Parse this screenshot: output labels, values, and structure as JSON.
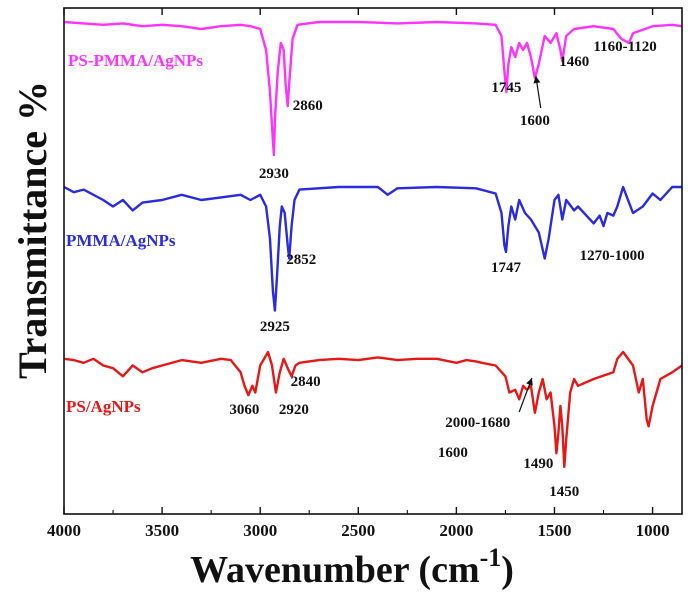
{
  "chart_data": {
    "type": "line",
    "title": "",
    "xlabel": "Wavenumber (cm",
    "xlabel_superscript": "-1",
    "xlabel_close": ")",
    "ylabel": "Transmittance  %",
    "x_axis_reversed": true,
    "xlim": [
      4000,
      850
    ],
    "xticks": [
      {
        "value": 4000,
        "label": "4000"
      },
      {
        "value": 3500,
        "label": "3500"
      },
      {
        "value": 3000,
        "label": "3000"
      },
      {
        "value": 2500,
        "label": "2500"
      },
      {
        "value": 2000,
        "label": "2000"
      },
      {
        "value": 1500,
        "label": "1500"
      },
      {
        "value": 1000,
        "label": "1000"
      }
    ],
    "y_ticks_shown": false,
    "series": [
      {
        "name": "PS-PMMA/AgNPs",
        "color": "#ff33ff",
        "points": [
          [
            4000,
            0.0
          ],
          [
            3900,
            0.01
          ],
          [
            3800,
            0.02
          ],
          [
            3700,
            0.01
          ],
          [
            3600,
            0.03
          ],
          [
            3500,
            0.02
          ],
          [
            3400,
            0.03
          ],
          [
            3300,
            0.05
          ],
          [
            3200,
            0.03
          ],
          [
            3100,
            0.02
          ],
          [
            3050,
            0.03
          ],
          [
            3000,
            0.05
          ],
          [
            2970,
            0.2
          ],
          [
            2950,
            0.5
          ],
          [
            2935,
            0.85
          ],
          [
            2930,
            0.95
          ],
          [
            2925,
            0.7
          ],
          [
            2910,
            0.35
          ],
          [
            2895,
            0.15
          ],
          [
            2880,
            0.2
          ],
          [
            2870,
            0.45
          ],
          [
            2860,
            0.6
          ],
          [
            2850,
            0.4
          ],
          [
            2835,
            0.12
          ],
          [
            2810,
            0.02
          ],
          [
            2700,
            0.0
          ],
          [
            2500,
            0.0
          ],
          [
            2300,
            0.01
          ],
          [
            2100,
            0.0
          ],
          [
            1900,
            0.01
          ],
          [
            1800,
            0.02
          ],
          [
            1770,
            0.1
          ],
          [
            1755,
            0.35
          ],
          [
            1745,
            0.5
          ],
          [
            1735,
            0.3
          ],
          [
            1720,
            0.18
          ],
          [
            1700,
            0.25
          ],
          [
            1680,
            0.15
          ],
          [
            1660,
            0.2
          ],
          [
            1640,
            0.15
          ],
          [
            1620,
            0.25
          ],
          [
            1600,
            0.4
          ],
          [
            1580,
            0.3
          ],
          [
            1550,
            0.1
          ],
          [
            1520,
            0.15
          ],
          [
            1490,
            0.08
          ],
          [
            1470,
            0.2
          ],
          [
            1460,
            0.28
          ],
          [
            1440,
            0.1
          ],
          [
            1400,
            0.05
          ],
          [
            1300,
            0.03
          ],
          [
            1200,
            0.05
          ],
          [
            1160,
            0.12
          ],
          [
            1120,
            0.15
          ],
          [
            1100,
            0.08
          ],
          [
            1000,
            0.03
          ],
          [
            900,
            0.02
          ],
          [
            850,
            0.03
          ]
        ]
      },
      {
        "name": "PMMA/AgNPs",
        "color": "#2a2adf",
        "points": [
          [
            4000,
            0.0
          ],
          [
            3950,
            0.04
          ],
          [
            3900,
            0.02
          ],
          [
            3800,
            0.1
          ],
          [
            3750,
            0.15
          ],
          [
            3700,
            0.1
          ],
          [
            3650,
            0.18
          ],
          [
            3600,
            0.12
          ],
          [
            3500,
            0.1
          ],
          [
            3400,
            0.06
          ],
          [
            3300,
            0.1
          ],
          [
            3200,
            0.08
          ],
          [
            3100,
            0.06
          ],
          [
            3050,
            0.1
          ],
          [
            3000,
            0.06
          ],
          [
            2970,
            0.15
          ],
          [
            2950,
            0.4
          ],
          [
            2935,
            0.8
          ],
          [
            2925,
            0.95
          ],
          [
            2915,
            0.7
          ],
          [
            2900,
            0.3
          ],
          [
            2890,
            0.15
          ],
          [
            2875,
            0.2
          ],
          [
            2860,
            0.45
          ],
          [
            2852,
            0.55
          ],
          [
            2840,
            0.3
          ],
          [
            2825,
            0.1
          ],
          [
            2800,
            0.02
          ],
          [
            2600,
            0.0
          ],
          [
            2400,
            0.0
          ],
          [
            2350,
            0.06
          ],
          [
            2300,
            0.01
          ],
          [
            2100,
            0.0
          ],
          [
            1900,
            0.01
          ],
          [
            1800,
            0.05
          ],
          [
            1770,
            0.2
          ],
          [
            1755,
            0.45
          ],
          [
            1747,
            0.5
          ],
          [
            1735,
            0.3
          ],
          [
            1720,
            0.15
          ],
          [
            1700,
            0.25
          ],
          [
            1680,
            0.1
          ],
          [
            1650,
            0.2
          ],
          [
            1620,
            0.25
          ],
          [
            1580,
            0.35
          ],
          [
            1550,
            0.55
          ],
          [
            1530,
            0.4
          ],
          [
            1500,
            0.1
          ],
          [
            1480,
            0.06
          ],
          [
            1460,
            0.25
          ],
          [
            1440,
            0.1
          ],
          [
            1400,
            0.18
          ],
          [
            1380,
            0.15
          ],
          [
            1300,
            0.28
          ],
          [
            1270,
            0.22
          ],
          [
            1250,
            0.3
          ],
          [
            1230,
            0.2
          ],
          [
            1200,
            0.22
          ],
          [
            1180,
            0.15
          ],
          [
            1150,
            0.0
          ],
          [
            1120,
            0.12
          ],
          [
            1100,
            0.2
          ],
          [
            1050,
            0.15
          ],
          [
            1000,
            0.05
          ],
          [
            960,
            0.1
          ],
          [
            900,
            0.0
          ],
          [
            850,
            0.0
          ]
        ]
      },
      {
        "name": "PS/AgNPs",
        "color": "#e61717",
        "points": [
          [
            4000,
            0.05
          ],
          [
            3950,
            0.06
          ],
          [
            3900,
            0.08
          ],
          [
            3850,
            0.05
          ],
          [
            3800,
            0.1
          ],
          [
            3750,
            0.12
          ],
          [
            3700,
            0.18
          ],
          [
            3650,
            0.1
          ],
          [
            3600,
            0.15
          ],
          [
            3550,
            0.12
          ],
          [
            3500,
            0.1
          ],
          [
            3400,
            0.06
          ],
          [
            3300,
            0.08
          ],
          [
            3200,
            0.05
          ],
          [
            3150,
            0.06
          ],
          [
            3100,
            0.15
          ],
          [
            3080,
            0.25
          ],
          [
            3060,
            0.32
          ],
          [
            3040,
            0.25
          ],
          [
            3025,
            0.3
          ],
          [
            3000,
            0.1
          ],
          [
            2980,
            0.05
          ],
          [
            2960,
            0.0
          ],
          [
            2940,
            0.1
          ],
          [
            2920,
            0.3
          ],
          [
            2900,
            0.15
          ],
          [
            2880,
            0.05
          ],
          [
            2860,
            0.12
          ],
          [
            2840,
            0.18
          ],
          [
            2820,
            0.1
          ],
          [
            2800,
            0.08
          ],
          [
            2700,
            0.06
          ],
          [
            2600,
            0.05
          ],
          [
            2500,
            0.06
          ],
          [
            2400,
            0.04
          ],
          [
            2300,
            0.06
          ],
          [
            2200,
            0.05
          ],
          [
            2100,
            0.05
          ],
          [
            2000,
            0.08
          ],
          [
            1950,
            0.06
          ],
          [
            1900,
            0.07
          ],
          [
            1870,
            0.08
          ],
          [
            1800,
            0.1
          ],
          [
            1750,
            0.18
          ],
          [
            1730,
            0.3
          ],
          [
            1700,
            0.28
          ],
          [
            1680,
            0.35
          ],
          [
            1660,
            0.25
          ],
          [
            1640,
            0.28
          ],
          [
            1620,
            0.25
          ],
          [
            1600,
            0.45
          ],
          [
            1580,
            0.3
          ],
          [
            1560,
            0.2
          ],
          [
            1540,
            0.35
          ],
          [
            1520,
            0.3
          ],
          [
            1500,
            0.55
          ],
          [
            1490,
            0.75
          ],
          [
            1480,
            0.6
          ],
          [
            1470,
            0.4
          ],
          [
            1460,
            0.55
          ],
          [
            1450,
            0.85
          ],
          [
            1440,
            0.65
          ],
          [
            1420,
            0.3
          ],
          [
            1400,
            0.2
          ],
          [
            1380,
            0.25
          ],
          [
            1300,
            0.2
          ],
          [
            1200,
            0.15
          ],
          [
            1180,
            0.05
          ],
          [
            1150,
            0.0
          ],
          [
            1100,
            0.1
          ],
          [
            1070,
            0.3
          ],
          [
            1050,
            0.2
          ],
          [
            1030,
            0.5
          ],
          [
            1020,
            0.55
          ],
          [
            1000,
            0.4
          ],
          [
            960,
            0.2
          ],
          [
            900,
            0.15
          ],
          [
            850,
            0.1
          ]
        ]
      }
    ],
    "annotations": [
      {
        "series": "PS-PMMA/AgNPs",
        "text": "2930",
        "x": 2930
      },
      {
        "series": "PS-PMMA/AgNPs",
        "text": "2860",
        "x": 2860
      },
      {
        "series": "PS-PMMA/AgNPs",
        "text": "1745",
        "x": 1745
      },
      {
        "series": "PS-PMMA/AgNPs",
        "text": "1600",
        "x": 1600
      },
      {
        "series": "PS-PMMA/AgNPs",
        "text": "1460",
        "x": 1460
      },
      {
        "series": "PS-PMMA/AgNPs",
        "text": "1160-1120",
        "x": 1140
      },
      {
        "series": "PMMA/AgNPs",
        "text": "2925",
        "x": 2925
      },
      {
        "series": "PMMA/AgNPs",
        "text": "2852",
        "x": 2852
      },
      {
        "series": "PMMA/AgNPs",
        "text": "1747",
        "x": 1747
      },
      {
        "series": "PMMA/AgNPs",
        "text": "1270-1000",
        "x": 1135
      },
      {
        "series": "PS/AgNPs",
        "text": "3060",
        "x": 3060
      },
      {
        "series": "PS/AgNPs",
        "text": "2920",
        "x": 2920
      },
      {
        "series": "PS/AgNPs",
        "text": "2840",
        "x": 2840
      },
      {
        "series": "PS/AgNPs",
        "text": "2000-1680",
        "x": 1840
      },
      {
        "series": "PS/AgNPs",
        "text": "1600",
        "x": 1600
      },
      {
        "series": "PS/AgNPs",
        "text": "1490",
        "x": 1490
      },
      {
        "series": "PS/AgNPs",
        "text": "1450",
        "x": 1450
      }
    ]
  }
}
